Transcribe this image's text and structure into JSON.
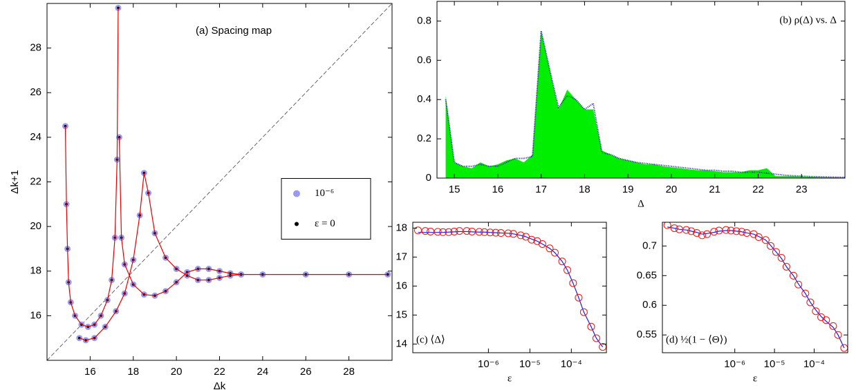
{
  "chart_data": [
    {
      "type": "scatter",
      "title": "(a) Spacing map",
      "x_label": "Δk",
      "y_label": "Δk+1",
      "xlim": [
        14,
        30
      ],
      "ylim": [
        14,
        30
      ],
      "xticks": [
        16,
        18,
        20,
        22,
        24,
        26,
        28
      ],
      "yticks": [
        16,
        18,
        20,
        22,
        24,
        26,
        28
      ],
      "diagonal": true,
      "legend": "center right",
      "x": [
        14.85,
        14.9,
        14.95,
        15.0,
        15.1,
        15.3,
        15.6,
        15.9,
        16.2,
        16.5,
        16.8,
        17.0,
        17.15,
        17.25,
        17.3,
        null,
        17.35,
        17.45,
        17.6,
        18.0,
        18.5,
        19.0,
        19.5,
        20.0,
        20.5,
        21.0,
        21.5,
        22.0,
        22.5,
        23.0,
        null,
        15.5,
        15.8,
        16.2,
        16.7,
        17.2,
        17.6,
        18.0,
        18.3,
        18.5,
        18.7,
        19.0,
        19.5,
        20.0,
        20.5,
        21.0,
        21.5,
        22.0,
        22.5,
        23.0,
        24,
        26,
        28,
        29.8
      ],
      "series": [
        {
          "name": "10⁻⁶",
          "color": "#9a9af0",
          "mode": "markers",
          "values": [
            24.5,
            21,
            19,
            17.5,
            16.6,
            16.0,
            15.6,
            15.5,
            15.6,
            16.0,
            16.7,
            17.6,
            19.5,
            23,
            29.8,
            null,
            24,
            19.5,
            18.3,
            17.4,
            16.95,
            16.9,
            17.1,
            17.5,
            17.95,
            18.1,
            18.1,
            18.0,
            17.9,
            17.85,
            null,
            15.0,
            14.9,
            15.0,
            15.5,
            16.2,
            17.0,
            18.5,
            20.5,
            22.4,
            21.5,
            19.7,
            18.6,
            18.1,
            17.8,
            17.6,
            17.6,
            17.7,
            17.8,
            17.85,
            17.85,
            17.85,
            17.85,
            17.85
          ]
        },
        {
          "name": "ε = 0",
          "color": "#000000",
          "mode": "dots",
          "values": [
            24.5,
            21,
            19,
            17.5,
            16.6,
            16.0,
            15.6,
            15.5,
            15.6,
            16.0,
            16.7,
            17.6,
            19.5,
            23,
            29.8,
            null,
            24,
            19.5,
            18.3,
            17.4,
            16.95,
            16.9,
            17.1,
            17.5,
            17.95,
            18.1,
            18.1,
            18.0,
            17.9,
            17.85,
            null,
            15.0,
            14.9,
            15.0,
            15.5,
            16.2,
            17.0,
            18.5,
            20.5,
            22.4,
            21.5,
            19.7,
            18.6,
            18.1,
            17.8,
            17.6,
            17.6,
            17.7,
            17.8,
            17.85,
            17.85,
            17.85,
            17.85,
            17.85
          ]
        },
        {
          "color": "#e00000",
          "mode": "line",
          "values": [
            24.5,
            21,
            19,
            17.5,
            16.6,
            16.0,
            15.6,
            15.5,
            15.6,
            16.0,
            16.7,
            17.6,
            19.5,
            23,
            29.8,
            null,
            24,
            19.5,
            18.3,
            17.4,
            16.95,
            16.9,
            17.1,
            17.5,
            17.95,
            18.1,
            18.1,
            18.0,
            17.9,
            17.85,
            null,
            15.0,
            14.9,
            15.0,
            15.5,
            16.2,
            17.0,
            18.5,
            20.5,
            22.4,
            21.5,
            19.7,
            18.6,
            18.1,
            17.8,
            17.6,
            17.6,
            17.7,
            17.8,
            17.85,
            17.85,
            17.85,
            17.85,
            17.85
          ]
        }
      ]
    },
    {
      "type": "area",
      "title": "(b) ρ(Δ) vs. Δ",
      "x_label": "Δ",
      "xlim": [
        14.6,
        24
      ],
      "ylim": [
        0,
        0.9
      ],
      "xticks": [
        15,
        16,
        17,
        18,
        19,
        20,
        21,
        22,
        23
      ],
      "yticks": [
        0,
        0.2,
        0.4,
        0.6,
        0.8
      ],
      "x": [
        14.8,
        15.0,
        15.2,
        15.4,
        15.6,
        15.8,
        16.0,
        16.2,
        16.4,
        16.6,
        16.8,
        17.0,
        17.2,
        17.4,
        17.6,
        17.8,
        18.0,
        18.2,
        18.4,
        18.6,
        18.8,
        19.0,
        19.2,
        19.4,
        19.6,
        19.8,
        20.0,
        20.2,
        20.4,
        20.6,
        20.8,
        21.0,
        21.2,
        21.4,
        21.6,
        21.8,
        22.0,
        22.2,
        22.4,
        22.6,
        22.8,
        23.0,
        23.2,
        23.4,
        23.6,
        23.8,
        24.0
      ],
      "series": [
        {
          "color": "#00ee00",
          "mode": "area",
          "values": [
            0.42,
            0.08,
            0.06,
            0.05,
            0.08,
            0.06,
            0.07,
            0.09,
            0.1,
            0.08,
            0.12,
            0.75,
            0.55,
            0.35,
            0.45,
            0.4,
            0.35,
            0.35,
            0.14,
            0.12,
            0.1,
            0.09,
            0.08,
            0.07,
            0.07,
            0.06,
            0.055,
            0.05,
            0.045,
            0.04,
            0.04,
            0.035,
            0.03,
            0.03,
            0.03,
            0.04,
            0.04,
            0.05,
            0.01,
            0.01,
            0.01,
            0.008,
            0.007,
            0.005,
            0.004,
            0.003,
            0.002
          ]
        },
        {
          "color": "#1a1aa0",
          "mode": "dotted",
          "values": [
            0.4,
            0.08,
            0.06,
            0.06,
            0.07,
            0.06,
            0.06,
            0.08,
            0.1,
            0.1,
            0.11,
            0.75,
            0.55,
            0.36,
            0.42,
            0.4,
            0.35,
            0.38,
            0.13,
            0.12,
            0.1,
            0.09,
            0.08,
            0.075,
            0.07,
            0.065,
            0.06,
            0.055,
            0.05,
            0.045,
            0.04,
            0.04,
            0.035,
            0.035,
            0.03,
            0.03,
            0.03,
            0.025,
            0.02,
            0.015,
            0.012,
            0.01,
            0.008,
            0.007,
            0.006,
            0.005,
            0.004
          ]
        }
      ]
    },
    {
      "type": "line",
      "title": "(c) ⟨Δ⟩",
      "x_label": "ε",
      "xlog": true,
      "xlim": [
        1.5e-08,
        0.0007
      ],
      "ylim": [
        13.7,
        18.2
      ],
      "xticks": [
        {
          "value": 1e-06,
          "label": "10⁻⁶"
        },
        {
          "value": 1e-05,
          "label": "10⁻⁵"
        },
        {
          "value": 0.0001,
          "label": "10⁻⁴"
        }
      ],
      "yticks": [
        14,
        15,
        16,
        17,
        18
      ],
      "x": [
        2e-08,
        3e-08,
        4e-08,
        6e-08,
        8e-08,
        1.1e-07,
        1.5e-07,
        2e-07,
        3e-07,
        4e-07,
        6e-07,
        8e-07,
        1.1e-06,
        1.5e-06,
        2e-06,
        3e-06,
        4e-06,
        6e-06,
        8e-06,
        1.1e-05,
        1.5e-05,
        2e-05,
        3e-05,
        4e-05,
        6e-05,
        8e-05,
        0.00011,
        0.00015,
        0.0002,
        0.0003,
        0.0004,
        0.00057
      ],
      "series": [
        {
          "color": "#ee1111",
          "mode": "circles",
          "values": [
            17.92,
            17.9,
            17.88,
            17.87,
            17.86,
            17.86,
            17.88,
            17.9,
            17.9,
            17.88,
            17.87,
            17.86,
            17.85,
            17.84,
            17.83,
            17.82,
            17.8,
            17.75,
            17.7,
            17.6,
            17.55,
            17.45,
            17.3,
            17.15,
            16.85,
            16.55,
            16.1,
            15.6,
            15.1,
            14.6,
            14.2,
            13.9
          ]
        },
        {
          "color": "#1a1aee",
          "mode": "line",
          "values": [
            17.85,
            17.85,
            17.85,
            17.85,
            17.85,
            17.86,
            17.87,
            17.88,
            17.88,
            17.87,
            17.86,
            17.86,
            17.85,
            17.84,
            17.83,
            17.82,
            17.8,
            17.75,
            17.7,
            17.62,
            17.55,
            17.45,
            17.3,
            17.15,
            16.85,
            16.55,
            16.1,
            15.6,
            15.1,
            14.6,
            14.2,
            13.9
          ]
        }
      ]
    },
    {
      "type": "line",
      "title": "(d) ½(1 − ⟨Θ⟩)",
      "x_label": "ε",
      "xlog": true,
      "xlim": [
        1.5e-08,
        0.0007
      ],
      "ylim": [
        0.52,
        0.74
      ],
      "xticks": [
        {
          "value": 1e-06,
          "label": "10⁻⁶"
        },
        {
          "value": 1e-05,
          "label": "10⁻⁵"
        },
        {
          "value": 0.0001,
          "label": "10⁻⁴"
        }
      ],
      "yticks": [
        0.55,
        0.6,
        0.65,
        0.7
      ],
      "x": [
        2e-08,
        3e-08,
        4e-08,
        6e-08,
        8e-08,
        1.1e-07,
        1.5e-07,
        2e-07,
        3e-07,
        4e-07,
        6e-07,
        8e-07,
        1.1e-06,
        1.5e-06,
        2e-06,
        3e-06,
        4e-06,
        6e-06,
        8e-06,
        1.1e-05,
        1.5e-05,
        2e-05,
        3e-05,
        4e-05,
        6e-05,
        8e-05,
        0.00011,
        0.00015,
        0.0002,
        0.0003,
        0.0004,
        0.00057
      ],
      "series": [
        {
          "color": "#ee1111",
          "mode": "circles",
          "values": [
            0.735,
            0.73,
            0.728,
            0.727,
            0.725,
            0.722,
            0.718,
            0.72,
            0.724,
            0.726,
            0.727,
            0.726,
            0.725,
            0.724,
            0.722,
            0.72,
            0.715,
            0.71,
            0.7,
            0.69,
            0.68,
            0.665,
            0.65,
            0.635,
            0.62,
            0.605,
            0.59,
            0.58,
            0.575,
            0.565,
            0.55,
            0.528
          ]
        },
        {
          "color": "#1a1aee",
          "mode": "line",
          "values": [
            0.732,
            0.73,
            0.728,
            0.727,
            0.725,
            0.723,
            0.72,
            0.721,
            0.723,
            0.725,
            0.726,
            0.726,
            0.725,
            0.724,
            0.722,
            0.72,
            0.716,
            0.71,
            0.701,
            0.69,
            0.679,
            0.665,
            0.65,
            0.636,
            0.62,
            0.605,
            0.592,
            0.581,
            0.573,
            0.563,
            0.55,
            0.528
          ]
        }
      ]
    }
  ]
}
